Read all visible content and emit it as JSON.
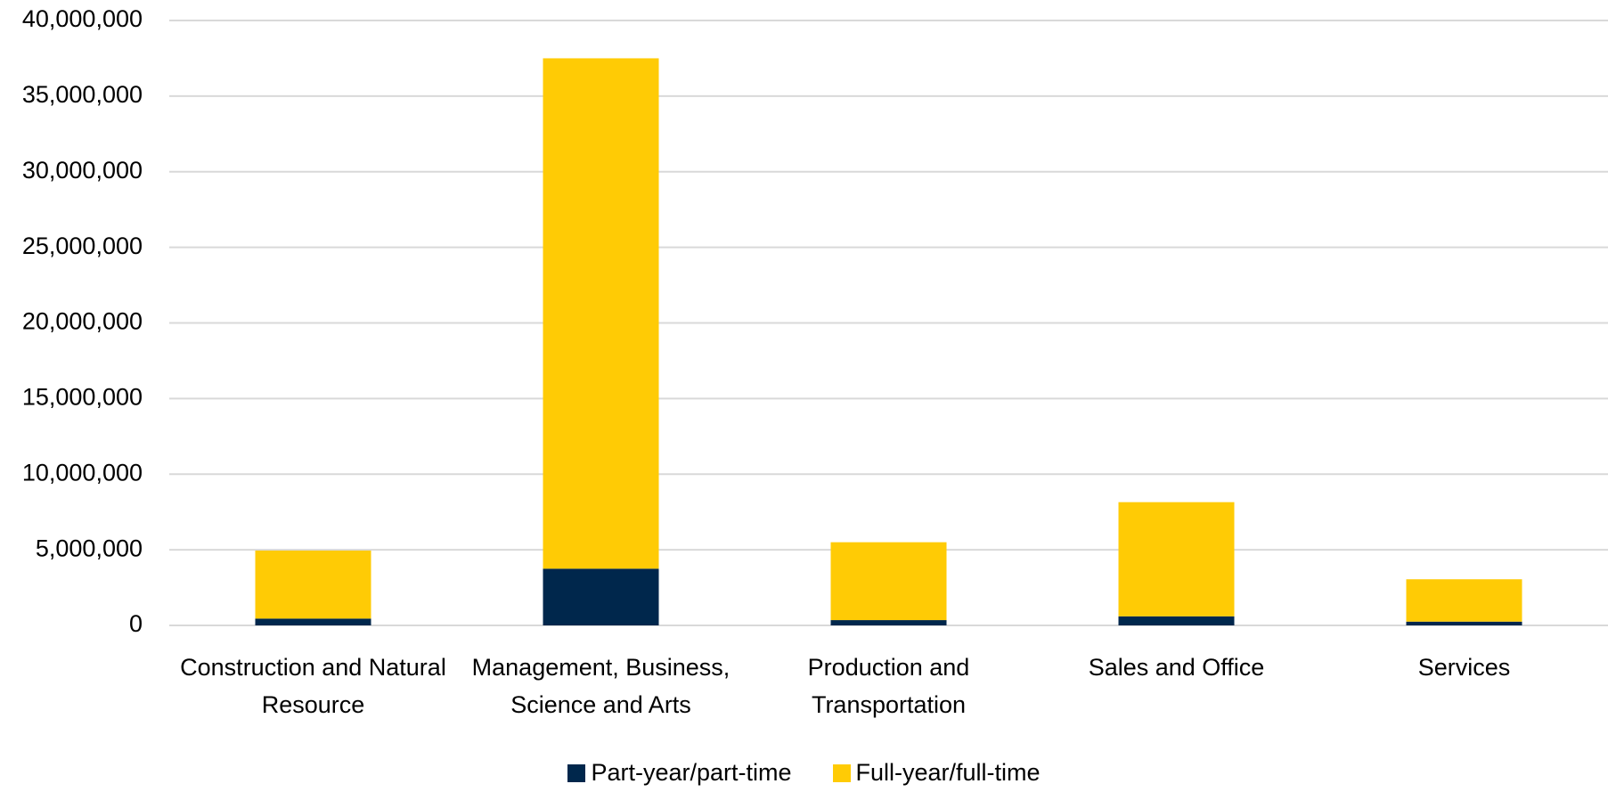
{
  "chart_data": {
    "type": "stacked_bar",
    "categories": [
      "Construction and Natural Resource",
      "Management, Business, Science and Arts",
      "Production and Transportation",
      "Sales and Office",
      "Services"
    ],
    "series": [
      {
        "name": "Part-year/part-time",
        "color": "#00274c",
        "values": [
          450000,
          3750000,
          350000,
          600000,
          250000
        ]
      },
      {
        "name": "Full-year/full-time",
        "color": "#ffcb05",
        "values": [
          4500000,
          33750000,
          5150000,
          7550000,
          2800000
        ]
      }
    ],
    "ylim": [
      0,
      40000000
    ],
    "yticks": [
      0,
      {
        "value": 5000000,
        "label": "5,000,000"
      },
      {
        "value": 10000000,
        "label": "10,000,000"
      },
      {
        "value": 15000000,
        "label": "15,000,000"
      },
      {
        "value": 20000000,
        "label": "20,000,000"
      },
      {
        "value": 25000000,
        "label": "25,000,000"
      },
      {
        "value": 30000000,
        "label": "30,000,000"
      },
      {
        "value": 35000000,
        "label": "35,000,000"
      },
      {
        "value": 40000000,
        "label": "40,000,000"
      }
    ],
    "grid": true,
    "legend": "bottom"
  }
}
